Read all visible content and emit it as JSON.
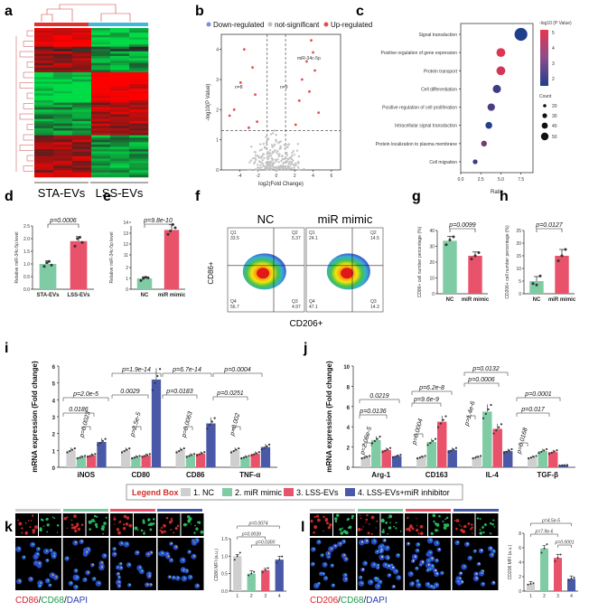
{
  "panels": {
    "a": {
      "label": "a",
      "groups": [
        "STA-EVs",
        "LSS-EVs"
      ]
    },
    "b": {
      "label": "b",
      "legend": [
        "Down-regulated",
        "not-significant",
        "Up-regulated"
      ],
      "legend_colors": [
        "#7b8fd8",
        "#bfbfbf",
        "#e05050"
      ],
      "ylabel": "-log10(P Value)",
      "xlabel": "log2(Fold Change)",
      "n_down": "n=8",
      "n_up": "n=9",
      "annot": "miR-34c-5p",
      "xticks": [
        "-4",
        "-2",
        "0",
        "2",
        "4",
        "6"
      ],
      "yticks": [
        "0",
        "1",
        "2",
        "3",
        "4"
      ]
    },
    "c": {
      "label": "c",
      "terms": [
        "Signal transduction",
        "Positive regulation of gene expression",
        "Protein transport",
        "Cell differentiation",
        "Positive regulation of cell proliferation",
        "Intracellular signal transduction",
        "Protein localization to plasma membrane",
        "Cell migration"
      ],
      "xlabel": "Ratio",
      "xticks": [
        "0.0",
        "2.5",
        "5.0",
        "7.5"
      ],
      "color_title": "-log10 (P Value)",
      "color_ticks": [
        "5",
        "4",
        "3",
        "2"
      ],
      "size_title": "Count",
      "size_ticks": [
        "20",
        "30",
        "40",
        "50"
      ]
    },
    "d": {
      "label": "d",
      "ylabel": "Relative miR-34c-5p level",
      "pval": "p=0.0006",
      "categories": [
        "STA-EVs",
        "LSS-EVs"
      ],
      "yticks": [
        "0.0",
        "0.5",
        "1.0",
        "1.5",
        "2.0",
        "2.5"
      ]
    },
    "e": {
      "label": "e",
      "ylabel": "Relative miR-34c-5p level",
      "pval": "p=9.8e-10",
      "categories": [
        "NC",
        "miR mimic"
      ],
      "yticks": [
        "0",
        "1",
        "2",
        "11",
        "12",
        "13",
        "14"
      ]
    },
    "f": {
      "label": "f",
      "titles": [
        "NC",
        "miR mimic"
      ],
      "ylabel": "CD86+",
      "xlabel": "CD206+",
      "quads_nc": [
        "Q1",
        "33.5",
        "Q2",
        "5.37",
        "Q4",
        "56.7",
        "Q3",
        "4.97"
      ],
      "quads_mimic": [
        "Q1",
        "24.1",
        "Q2",
        "14.5",
        "Q4",
        "47.1",
        "Q3",
        "14.3"
      ]
    },
    "g": {
      "label": "g",
      "ylabel": "CD86+ cell number percentage (%)",
      "pval": "p=0.0099",
      "categories": [
        "NC",
        "miR mimic"
      ],
      "yticks": [
        "0",
        "10",
        "20",
        "30",
        "40"
      ]
    },
    "h": {
      "label": "h",
      "ylabel": "CD206+ cell number percentage (%)",
      "pval": "p=0.0127",
      "categories": [
        "NC",
        "miR mimic"
      ],
      "yticks": [
        "0",
        "5",
        "10",
        "15",
        "20",
        "25"
      ]
    },
    "i": {
      "label": "i",
      "ylabel": "mRNA expression (Fold change)",
      "genes": [
        "iNOS",
        "CD80",
        "CD86",
        "TNF-α"
      ],
      "yticks": [
        "0",
        "1",
        "2",
        "3",
        "4",
        "5",
        "6"
      ],
      "pvals": [
        "p=2.0e-5",
        "0.0186",
        "p=0.0023",
        "p=1.9e-14",
        "0.0029",
        "p=2.5e-5",
        "p=6.7e-14",
        "p=0.0183",
        "p=0.0063",
        "p=0.0004",
        "p=0.0251",
        "p=0.002"
      ]
    },
    "j": {
      "label": "j",
      "ylabel": "mRNA expression (Fold change)",
      "genes": [
        "Arg-1",
        "CD163",
        "IL-4",
        "TGF-β"
      ],
      "yticks": [
        "0",
        "2",
        "4",
        "6",
        "8",
        "10"
      ],
      "pvals": [
        "0.0219",
        "p=0.0136",
        "p=2.06e-5",
        "p=6.2e-8",
        "p=9.6e-9",
        "p=0.0004",
        "p=0.0132",
        "p=0.0006",
        "p=1.4e-6",
        "p=0.0001",
        "p=0.017",
        "p=0.0168"
      ]
    },
    "legend_box": {
      "title": "Legend Box",
      "items": [
        "1. NC",
        "2. miR mimic",
        "3. LSS-EVs",
        "4. LSS-EVs+miR inhibitor"
      ],
      "colors": [
        "#cfcfcf",
        "#7fcba4",
        "#e8536b",
        "#4a58a8"
      ]
    },
    "k": {
      "label": "k",
      "stain": [
        "CD86",
        "/",
        "CD68",
        "/",
        "DAPI"
      ],
      "stain_colors": [
        "#e0202a",
        "#111111",
        "#1f9a4c",
        "#111111",
        "#2a3fb0"
      ],
      "ylabel": "CD86 MFI (a.u.)",
      "xticks": [
        "1",
        "2",
        "3",
        "4"
      ],
      "yticks": [
        "0.0",
        "0.5",
        "1.0",
        "1.5"
      ],
      "pvals": [
        "p=0.0074",
        "p=0.0039",
        "p=0.0300"
      ]
    },
    "l": {
      "label": "l",
      "stain": [
        "CD206",
        "/",
        "CD68",
        "/",
        "DAPI"
      ],
      "stain_colors": [
        "#e0202a",
        "#111111",
        "#1f9a4c",
        "#111111",
        "#2a3fb0"
      ],
      "ylabel": "CD206 MFI (a.u.)",
      "xticks": [
        "1",
        "2",
        "3",
        "4"
      ],
      "yticks": [
        "0",
        "2",
        "4",
        "6",
        "8"
      ],
      "pvals": [
        "p=4.5e-5",
        "p=7.9e-6",
        "p=0.0001"
      ]
    }
  },
  "chart_data": [
    {
      "type": "scatter",
      "panel": "b",
      "xlabel": "log2(Fold Change)",
      "ylabel": "-log10(P Value)",
      "xlim": [
        -6,
        7
      ],
      "ylim": [
        0,
        4.5
      ],
      "up": [
        [
          3.8,
          4.3
        ],
        [
          4.0,
          3.9
        ],
        [
          3.3,
          3.6
        ],
        [
          4.2,
          3.3
        ],
        [
          2.8,
          3.0
        ],
        [
          3.6,
          2.6
        ],
        [
          2.5,
          2.3
        ],
        [
          4.6,
          1.9
        ],
        [
          2.1,
          1.5
        ]
      ],
      "down": [
        [
          -3.5,
          4.0
        ],
        [
          -2.6,
          3.4
        ],
        [
          -3.9,
          2.9
        ],
        [
          -2.3,
          2.5
        ],
        [
          -4.6,
          2.0
        ],
        [
          -2.1,
          1.6
        ],
        [
          -3.0,
          1.4
        ],
        [
          -5.1,
          1.8
        ]
      ]
    },
    {
      "type": "scatter",
      "panel": "c",
      "xlabel": "Ratio",
      "xlim": [
        0,
        9
      ],
      "terms": [
        "Signal transduction",
        "Positive regulation of gene expression",
        "Protein transport",
        "Cell differentiation",
        "Positive regulation of cell proliferation",
        "Intracellular signal transduction",
        "Protein localization to plasma membrane",
        "Cell migration"
      ],
      "ratio": [
        7.5,
        5.0,
        5.0,
        4.5,
        3.8,
        3.5,
        2.9,
        1.8
      ],
      "count": [
        55,
        35,
        35,
        32,
        28,
        25,
        20,
        15
      ],
      "neglogp": [
        1.5,
        4.8,
        4.6,
        2.0,
        2.3,
        1.6,
        3.0,
        2.0
      ]
    },
    {
      "type": "bar",
      "panel": "d",
      "categories": [
        "STA-EVs",
        "LSS-EVs"
      ],
      "values": [
        1.0,
        1.9
      ],
      "errors": [
        0.12,
        0.18
      ],
      "ylim": [
        0,
        2.5
      ],
      "points": [
        [
          0.9,
          1.05,
          1.1,
          0.95
        ],
        [
          1.7,
          2.0,
          2.05,
          1.85
        ]
      ],
      "colors": [
        "#7fcba4",
        "#e8536b"
      ]
    },
    {
      "type": "bar",
      "panel": "e",
      "categories": [
        "NC",
        "miR mimic"
      ],
      "values": [
        1.0,
        13.3
      ],
      "errors": [
        0.15,
        0.5
      ],
      "points": [
        [
          0.8,
          1.0,
          1.1,
          1.05
        ],
        [
          12.9,
          13.2,
          13.8,
          13.5
        ]
      ],
      "colors": [
        "#7fcba4",
        "#e8536b"
      ]
    },
    {
      "type": "bar",
      "panel": "g",
      "categories": [
        "NC",
        "miR mimic"
      ],
      "values": [
        33.5,
        24.0
      ],
      "errors": [
        2.8,
        2.4
      ],
      "ylim": [
        0,
        40
      ],
      "points": [
        [
          31,
          34,
          36
        ],
        [
          22,
          24,
          26
        ]
      ],
      "colors": [
        "#7fcba4",
        "#e8536b"
      ]
    },
    {
      "type": "bar",
      "panel": "h",
      "categories": [
        "NC",
        "miR mimic"
      ],
      "values": [
        5.0,
        15.0
      ],
      "errors": [
        1.8,
        2.5
      ],
      "ylim": [
        0,
        25
      ],
      "points": [
        [
          4,
          3.5,
          7
        ],
        [
          13,
          15,
          17.5
        ]
      ],
      "colors": [
        "#7fcba4",
        "#e8536b"
      ]
    },
    {
      "type": "bar",
      "panel": "i",
      "categories": [
        "iNOS",
        "CD80",
        "CD86",
        "TNF-α"
      ],
      "ylim": [
        0,
        6
      ],
      "series": [
        {
          "name": "1. NC",
          "values": [
            1.0,
            1.0,
            1.0,
            1.0
          ]
        },
        {
          "name": "2. miR mimic",
          "values": [
            0.6,
            0.6,
            0.7,
            0.6
          ]
        },
        {
          "name": "3. LSS-EVs",
          "values": [
            0.7,
            0.7,
            0.8,
            0.8
          ]
        },
        {
          "name": "4. LSS-EVs+miR inhibitor",
          "values": [
            1.5,
            5.2,
            2.6,
            1.2
          ]
        }
      ]
    },
    {
      "type": "bar",
      "panel": "j",
      "categories": [
        "Arg-1",
        "CD163",
        "IL-4",
        "TGF-β"
      ],
      "ylim": [
        0,
        10
      ],
      "series": [
        {
          "name": "1. NC",
          "values": [
            1.0,
            1.0,
            1.0,
            1.0
          ]
        },
        {
          "name": "2. miR mimic",
          "values": [
            2.7,
            2.5,
            5.5,
            1.6
          ]
        },
        {
          "name": "3. LSS-EVs",
          "values": [
            1.7,
            4.5,
            3.8,
            1.5
          ]
        },
        {
          "name": "4. LSS-EVs+miR inhibitor",
          "values": [
            1.1,
            1.7,
            1.6,
            0.2
          ]
        }
      ]
    },
    {
      "type": "bar",
      "panel": "k",
      "categories": [
        "1",
        "2",
        "3",
        "4"
      ],
      "values": [
        1.0,
        0.5,
        0.6,
        0.9
      ],
      "errors": [
        0.05,
        0.08,
        0.05,
        0.1
      ],
      "ylim": [
        0,
        1.5
      ]
    },
    {
      "type": "bar",
      "panel": "l",
      "categories": [
        "1",
        "2",
        "3",
        "4"
      ],
      "values": [
        1.0,
        5.9,
        4.6,
        1.7
      ],
      "errors": [
        0.3,
        0.4,
        0.5,
        0.4
      ],
      "ylim": [
        0,
        8
      ]
    }
  ]
}
